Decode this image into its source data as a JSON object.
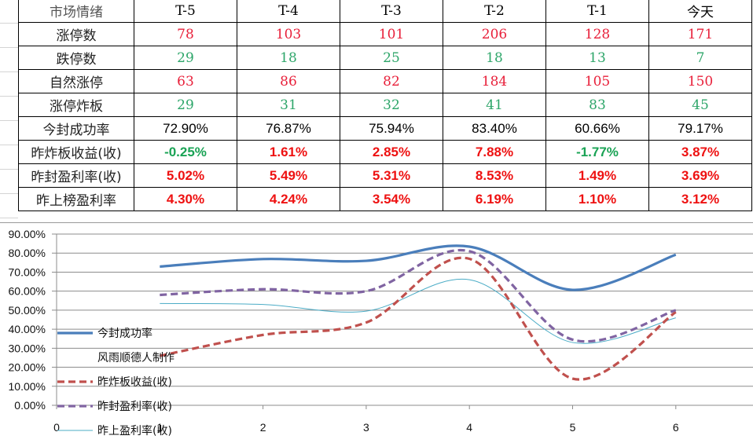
{
  "table": {
    "header": {
      "label": "市场情绪",
      "columns": [
        "T-5",
        "T-4",
        "T-3",
        "T-2",
        "T-1",
        "今天"
      ]
    },
    "rows": [
      {
        "label": "涨停数",
        "values": [
          "78",
          "103",
          "101",
          "206",
          "128",
          "171"
        ],
        "colors": [
          "red",
          "red",
          "red",
          "red",
          "red",
          "red"
        ]
      },
      {
        "label": "跌停数",
        "values": [
          "29",
          "18",
          "25",
          "18",
          "13",
          "7"
        ],
        "colors": [
          "green",
          "green",
          "green",
          "green",
          "green",
          "green"
        ]
      },
      {
        "label": "自然涨停",
        "values": [
          "63",
          "86",
          "82",
          "184",
          "105",
          "150"
        ],
        "colors": [
          "red",
          "red",
          "red",
          "red",
          "red",
          "red"
        ]
      },
      {
        "label": "涨停炸板",
        "values": [
          "29",
          "31",
          "32",
          "41",
          "83",
          "45"
        ],
        "colors": [
          "green",
          "green",
          "green",
          "green",
          "green",
          "green"
        ]
      },
      {
        "label": "今封成功率",
        "values": [
          "72.90%",
          "76.87%",
          "75.94%",
          "83.40%",
          "60.66%",
          "79.17%"
        ],
        "colors": [
          "black",
          "black",
          "black",
          "black",
          "black",
          "black"
        ]
      },
      {
        "label": "昨炸板收益(收)",
        "values": [
          "-0.25%",
          "1.61%",
          "2.85%",
          "7.88%",
          "-1.77%",
          "3.87%"
        ],
        "colors": [
          "bgreen",
          "bred",
          "bred",
          "bred",
          "bgreen",
          "bred"
        ]
      },
      {
        "label": "昨封盈利率(收)",
        "values": [
          "5.02%",
          "5.49%",
          "5.31%",
          "8.53%",
          "1.49%",
          "3.69%"
        ],
        "colors": [
          "bred",
          "bred",
          "bred",
          "bred",
          "bred",
          "bred"
        ]
      },
      {
        "label": "昨上榜盈利率",
        "values": [
          "4.30%",
          "4.24%",
          "3.54%",
          "6.19%",
          "1.10%",
          "3.12%"
        ],
        "colors": [
          "bred",
          "bred",
          "bred",
          "bred",
          "bred",
          "bred"
        ]
      }
    ]
  },
  "chart_data": {
    "type": "line",
    "title": "",
    "xlabel": "",
    "ylabel": "",
    "x": [
      1,
      2,
      3,
      4,
      5,
      6
    ],
    "x_ticks": [
      "0",
      "1",
      "2",
      "3",
      "4",
      "5",
      "6"
    ],
    "y_ticks": [
      "0.00%",
      "10.00%",
      "20.00%",
      "30.00%",
      "40.00%",
      "50.00%",
      "60.00%",
      "70.00%",
      "80.00%",
      "90.00%"
    ],
    "ylim": [
      0,
      90
    ],
    "xlim": [
      0,
      6.7
    ],
    "grid": true,
    "smooth": true,
    "legend_position": "overlay-left",
    "series": [
      {
        "name": "今封成功率",
        "values": [
          72.9,
          76.87,
          75.94,
          83.4,
          60.66,
          79.17
        ],
        "color": "#4a7ebb",
        "style": "solid-thick"
      },
      {
        "name": "风雨顺德人制作",
        "values": [],
        "color": "none",
        "style": "none"
      },
      {
        "name": "昨炸板收益(收)",
        "values": [
          26,
          37,
          43.5,
          77,
          14,
          49
        ],
        "color": "#c0504d",
        "style": "dashed"
      },
      {
        "name": "昨封盈利率(收)",
        "values": [
          58,
          61,
          60,
          81,
          34.5,
          50
        ],
        "color": "#8064a2",
        "style": "dashed"
      },
      {
        "name": "昨上盈利率(收)",
        "values": [
          53.5,
          53,
          49.5,
          66,
          33,
          46
        ],
        "color": "#4bacc6",
        "style": "solid-thin"
      }
    ]
  }
}
